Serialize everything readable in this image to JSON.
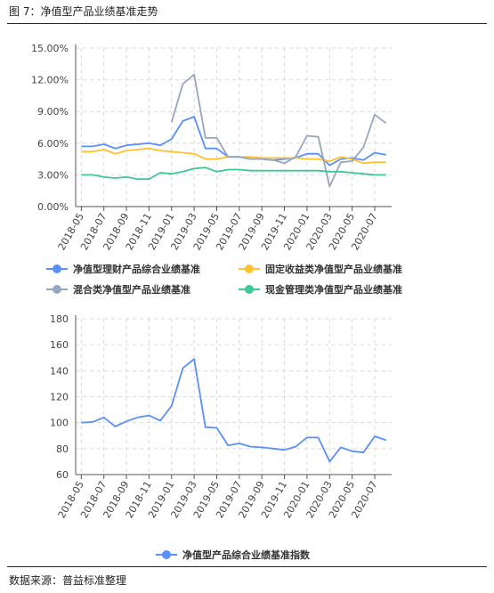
{
  "figure_title": "图 7：净值型产品业绩基准走势",
  "source_note": "数据来源：普益标准整理",
  "chart_data": [
    {
      "type": "line",
      "x": [
        "2018-05",
        "2018-06",
        "2018-07",
        "2018-08",
        "2018-09",
        "2018-10",
        "2018-11",
        "2018-12",
        "2019-01",
        "2019-02",
        "2019-03",
        "2019-04",
        "2019-05",
        "2019-06",
        "2019-07",
        "2019-08",
        "2019-09",
        "2019-10",
        "2019-11",
        "2019-12",
        "2020-01",
        "2020-02",
        "2020-03",
        "2020-04",
        "2020-05",
        "2020-06",
        "2020-07",
        "2020-08"
      ],
      "xticks": [
        "2018-05",
        "2018-07",
        "2018-09",
        "2018-11",
        "2019-01",
        "2019-03",
        "2019-05",
        "2019-07",
        "2019-09",
        "2019-11",
        "2020-01",
        "2020-03",
        "2020-05",
        "2020-07"
      ],
      "yticks": [
        "0.00%",
        "3.00%",
        "6.00%",
        "9.00%",
        "12.00%",
        "15.00%"
      ],
      "ylim": [
        0,
        15
      ],
      "grid": true,
      "legend_position": "bottom",
      "series": [
        {
          "name": "净值型理财产品综合业绩基准",
          "color": "#5B8FF9",
          "values": [
            5.7,
            5.7,
            5.9,
            5.5,
            5.8,
            5.9,
            6.0,
            5.8,
            6.4,
            8.1,
            8.5,
            5.5,
            5.5,
            4.7,
            4.7,
            4.5,
            4.5,
            4.4,
            4.5,
            4.6,
            5.0,
            5.0,
            3.9,
            4.5,
            4.6,
            4.4,
            5.1,
            4.9
          ]
        },
        {
          "name": "固定收益类净值型产品业绩基准",
          "color": "#FFC12E",
          "values": [
            5.2,
            5.2,
            5.4,
            5.0,
            5.3,
            5.4,
            5.5,
            5.3,
            5.2,
            5.1,
            5.0,
            4.5,
            4.5,
            4.7,
            4.7,
            4.7,
            4.6,
            4.6,
            4.6,
            4.6,
            4.5,
            4.5,
            4.3,
            4.7,
            4.5,
            4.1,
            4.2,
            4.2
          ]
        },
        {
          "name": "混合类净值型产品业绩基准",
          "color": "#97A6BF",
          "values": [
            null,
            null,
            null,
            null,
            null,
            null,
            null,
            null,
            8.0,
            11.6,
            12.5,
            6.5,
            6.5,
            4.7,
            4.7,
            4.5,
            4.5,
            4.4,
            4.1,
            4.7,
            6.7,
            6.6,
            1.9,
            4.2,
            4.3,
            5.6,
            8.7,
            7.9
          ]
        },
        {
          "name": "现金管理类净值型产品业绩基准",
          "color": "#3CC996",
          "values": [
            3.0,
            3.0,
            2.8,
            2.7,
            2.8,
            2.6,
            2.6,
            3.2,
            3.1,
            3.3,
            3.6,
            3.7,
            3.3,
            3.5,
            3.5,
            3.4,
            3.4,
            3.4,
            3.4,
            3.4,
            3.4,
            3.4,
            3.3,
            3.3,
            3.2,
            3.1,
            3.0,
            3.0
          ]
        }
      ]
    },
    {
      "type": "line",
      "x": [
        "2018-05",
        "2018-06",
        "2018-07",
        "2018-08",
        "2018-09",
        "2018-10",
        "2018-11",
        "2018-12",
        "2019-01",
        "2019-02",
        "2019-03",
        "2019-04",
        "2019-05",
        "2019-06",
        "2019-07",
        "2019-08",
        "2019-09",
        "2019-10",
        "2019-11",
        "2019-12",
        "2020-01",
        "2020-02",
        "2020-03",
        "2020-04",
        "2020-05",
        "2020-06",
        "2020-07",
        "2020-08"
      ],
      "xticks": [
        "2018-05",
        "2018-07",
        "2018-09",
        "2018-11",
        "2019-01",
        "2019-03",
        "2019-05",
        "2019-07",
        "2019-09",
        "2019-11",
        "2020-01",
        "2020-03",
        "2020-05",
        "2020-07"
      ],
      "yticks": [
        "60",
        "80",
        "100",
        "120",
        "140",
        "160",
        "180"
      ],
      "ylim": [
        60,
        180
      ],
      "grid": true,
      "legend_position": "bottom",
      "series": [
        {
          "name": "净值型产品综合业绩基准指数",
          "color": "#5B8FF9",
          "values": [
            100,
            100.5,
            104,
            97,
            101,
            104,
            105.5,
            101.5,
            113,
            142,
            149,
            96.5,
            96,
            82.5,
            84,
            81.5,
            81,
            80,
            79,
            81.5,
            88.5,
            88.5,
            70,
            81,
            78,
            77,
            89.5,
            86.5
          ]
        }
      ]
    }
  ]
}
